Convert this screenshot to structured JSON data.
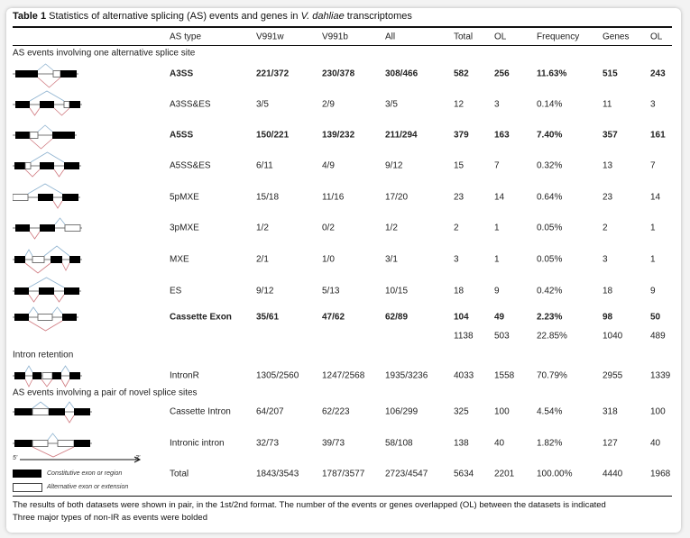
{
  "title": {
    "label": "Table 1",
    "text": "Statistics of alternative splicing (AS) events and genes in ",
    "species": "V. dahliae",
    "suffix": " transcriptomes"
  },
  "columns": [
    "AS type",
    "V991w",
    "V991b",
    "All",
    "Total",
    "OL",
    "Frequency",
    "Genes",
    "OL"
  ],
  "sections": [
    "AS events involving one alternative splice site",
    "Intron retention",
    "AS events involving a pair of novel splice sites"
  ],
  "rows": [
    {
      "type": "A3SS",
      "bold": true,
      "cells": [
        "221/372",
        "230/378",
        "308/466",
        "582",
        "256",
        "11.63%",
        "515",
        "243"
      ]
    },
    {
      "type": "A3SS&ES",
      "bold": false,
      "cells": [
        "3/5",
        "2/9",
        "3/5",
        "12",
        "3",
        "0.14%",
        "11",
        "3"
      ]
    },
    {
      "type": "A5SS",
      "bold": true,
      "cells": [
        "150/221",
        "139/232",
        "211/294",
        "379",
        "163",
        "7.40%",
        "357",
        "161"
      ]
    },
    {
      "type": "A5SS&ES",
      "bold": false,
      "cells": [
        "6/11",
        "4/9",
        "9/12",
        "15",
        "7",
        "0.32%",
        "13",
        "7"
      ]
    },
    {
      "type": "5pMXE",
      "bold": false,
      "cells": [
        "15/18",
        "11/16",
        "17/20",
        "23",
        "14",
        "0.64%",
        "23",
        "14"
      ]
    },
    {
      "type": "3pMXE",
      "bold": false,
      "cells": [
        "1/2",
        "0/2",
        "1/2",
        "2",
        "1",
        "0.05%",
        "2",
        "1"
      ]
    },
    {
      "type": "MXE",
      "bold": false,
      "cells": [
        "2/1",
        "1/0",
        "3/1",
        "3",
        "1",
        "0.05%",
        "3",
        "1"
      ]
    },
    {
      "type": "ES",
      "bold": false,
      "cells": [
        "9/12",
        "5/13",
        "10/15",
        "18",
        "9",
        "0.42%",
        "18",
        "9"
      ]
    },
    {
      "type": "Cassette Exon",
      "bold": true,
      "cells": [
        "35/61",
        "47/62",
        "62/89",
        "104",
        "49",
        "2.23%",
        "98",
        "50"
      ]
    },
    {
      "type": "",
      "bold": false,
      "cells": [
        "",
        "",
        "",
        "1138",
        "503",
        "22.85%",
        "1040",
        "489"
      ]
    },
    {
      "type": "IntronR",
      "bold": false,
      "cells": [
        "1305/2560",
        "1247/2568",
        "1935/3236",
        "4033",
        "1558",
        "70.79%",
        "2955",
        "1339"
      ]
    },
    {
      "type": "Cassette Intron",
      "bold": false,
      "cells": [
        "64/207",
        "62/223",
        "106/299",
        "325",
        "100",
        "4.54%",
        "318",
        "100"
      ]
    },
    {
      "type": "Intronic intron",
      "bold": false,
      "cells": [
        "32/73",
        "39/73",
        "58/108",
        "138",
        "40",
        "1.82%",
        "127",
        "40"
      ]
    },
    {
      "type": "Total",
      "bold": false,
      "cells": [
        "1843/3543",
        "1787/3577",
        "2723/4547",
        "5634",
        "2201",
        "100.00%",
        "4440",
        "1968"
      ]
    }
  ],
  "legend": {
    "five": "5'",
    "three": "3'",
    "constitutive": "Constitutive exon or region",
    "alternative": "Alternative exon or extension"
  },
  "footnotes": [
    "The results of both datasets were shown in pair, in the 1st/2nd format. The number of the events or genes overlapped (OL) between the datasets is indicated",
    "Three major types of non-IR as events were bolded"
  ],
  "colors": {
    "up_arc": "#8fb3d0",
    "down_arc": "#d07a80"
  }
}
